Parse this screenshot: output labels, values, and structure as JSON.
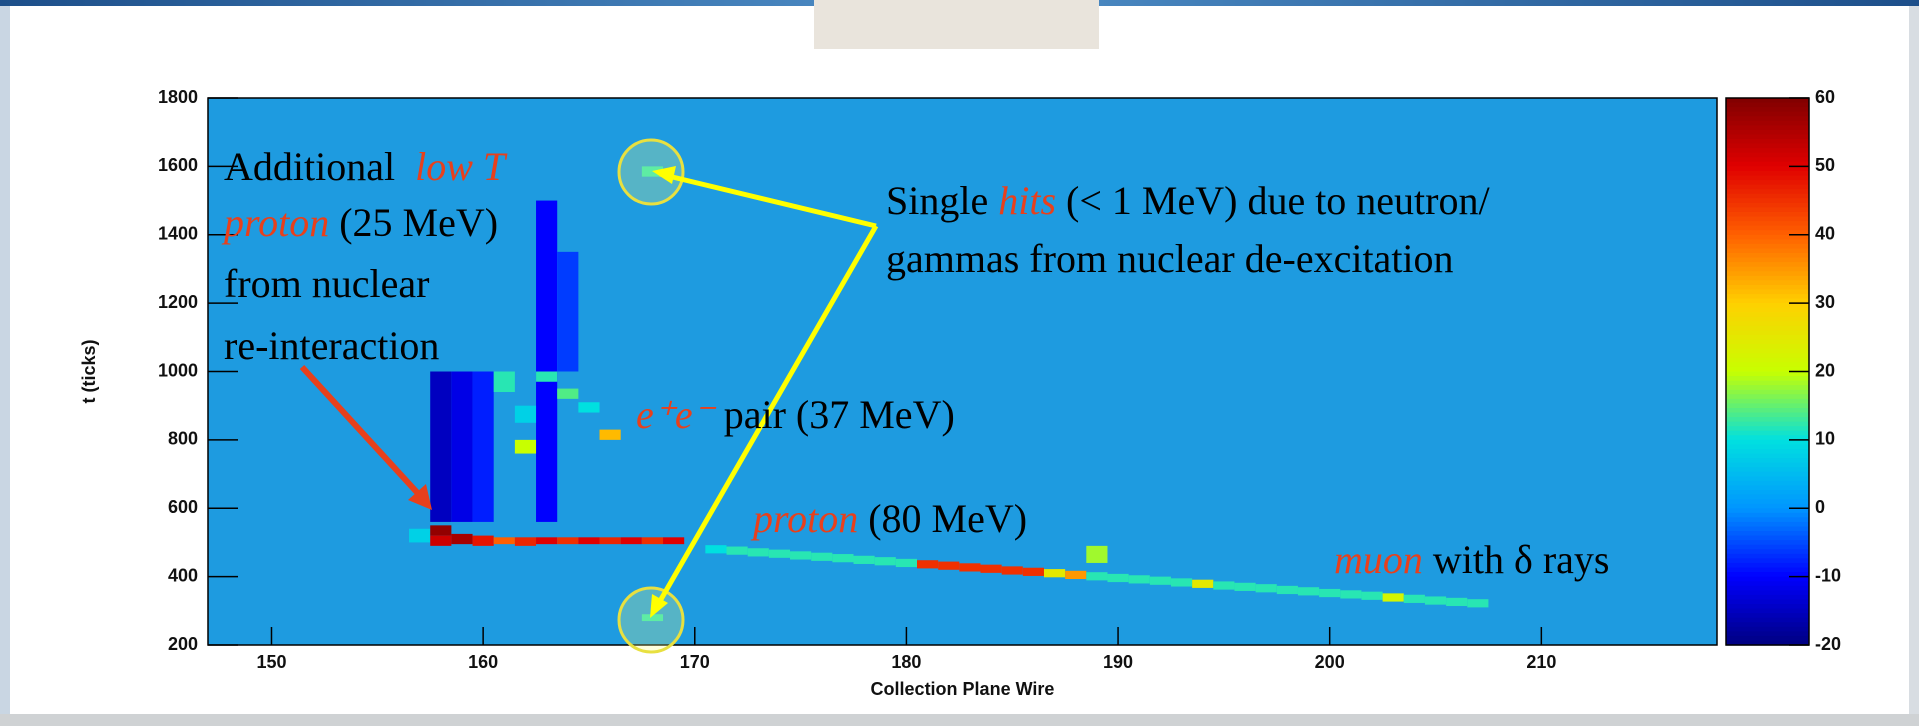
{
  "chart_data": {
    "type": "heatmap",
    "x_label": "Collection Plane Wire",
    "y_label": "t (ticks)",
    "xlim": [
      147,
      218.3
    ],
    "xticks": [
      150,
      160,
      170,
      180,
      190,
      200,
      210
    ],
    "ylim": [
      200,
      1800
    ],
    "yticks": [
      200,
      400,
      600,
      800,
      1000,
      1200,
      1400,
      1600,
      1800
    ],
    "zlim": [
      -20,
      60
    ],
    "zticks": [
      -20,
      -10,
      0,
      10,
      20,
      30,
      40,
      50,
      60
    ],
    "background": "#1e9be0",
    "colormap": [
      "#000080",
      "#0000ff",
      "#0096ff",
      "#00e0e0",
      "#c8ff00",
      "#ffd000",
      "#ff6000",
      "#e00000",
      "#800000"
    ],
    "cells": {
      "wire": [
        158,
        159,
        160,
        163,
        164,
        157,
        158,
        158,
        159,
        160,
        161,
        162,
        163,
        164,
        165,
        166,
        167,
        168,
        169,
        161,
        162,
        162,
        163,
        164,
        165,
        166,
        168,
        168,
        189,
        171,
        172,
        173,
        174,
        175,
        176,
        177,
        178,
        179,
        180,
        181,
        182,
        183,
        184,
        185,
        186,
        187,
        188,
        189,
        190,
        191,
        192,
        193,
        194,
        195,
        196,
        197,
        198,
        199,
        200,
        201,
        202,
        203,
        204,
        205,
        206,
        207
      ],
      "t_low": [
        560,
        560,
        560,
        560,
        1000,
        500,
        520,
        490,
        495,
        490,
        495,
        490,
        495,
        495,
        495,
        495,
        495,
        495,
        495,
        940,
        760,
        850,
        970,
        920,
        880,
        800,
        1570,
        270,
        440,
        468,
        464,
        459,
        455,
        450,
        446,
        442,
        437,
        433,
        428,
        424,
        420,
        415,
        411,
        406,
        402,
        398,
        393,
        389,
        384,
        380,
        376,
        371,
        367,
        362,
        358,
        354,
        349,
        345,
        340,
        336,
        332,
        327,
        323,
        318,
        314,
        310
      ],
      "t_high": [
        1000,
        1000,
        1000,
        1500,
        1350,
        540,
        550,
        520,
        525,
        520,
        515,
        515,
        515,
        515,
        515,
        515,
        515,
        515,
        515,
        1000,
        800,
        900,
        1000,
        950,
        910,
        830,
        1600,
        290,
        490,
        492,
        488,
        483,
        479,
        474,
        470,
        466,
        461,
        457,
        452,
        448,
        444,
        439,
        435,
        430,
        426,
        422,
        417,
        413,
        408,
        404,
        400,
        395,
        391,
        386,
        382,
        378,
        373,
        369,
        364,
        360,
        356,
        351,
        347,
        342,
        338,
        334
      ],
      "z": [
        -15,
        -12,
        -8,
        -10,
        -6,
        8,
        58,
        52,
        56,
        48,
        40,
        46,
        50,
        45,
        50,
        46,
        50,
        45,
        50,
        12,
        20,
        8,
        12,
        14,
        10,
        32,
        12,
        12,
        18,
        10,
        12,
        12,
        12,
        12,
        12,
        12,
        12,
        12,
        12,
        45,
        45,
        45,
        45,
        45,
        45,
        25,
        35,
        12,
        12,
        12,
        12,
        12,
        25,
        12,
        12,
        12,
        12,
        12,
        12,
        12,
        12,
        22,
        12,
        12,
        12,
        12
      ]
    },
    "emphasis_color": "#e8401c",
    "annotations": [
      {
        "lines": [
          [
            {
              "text": "Additional  "
            },
            {
              "text": "low T",
              "em": true
            }
          ],
          [
            {
              "text": "proton",
              "em": true
            },
            {
              "text": " (25 MeV)"
            }
          ],
          [
            {
              "text": "from nuclear"
            }
          ],
          [
            {
              "text": "re-interaction"
            }
          ]
        ]
      },
      {
        "lines": [
          [
            {
              "text": "Single "
            },
            {
              "text": "hits",
              "em": true
            },
            {
              "text": " (< 1 MeV) due to neutron/"
            }
          ],
          [
            {
              "text": "gammas from nuclear de-excitation"
            }
          ]
        ]
      },
      {
        "lines": [
          [
            {
              "text": "e⁺e⁻",
              "em": true
            },
            {
              "text": " pair (37 MeV)"
            }
          ]
        ]
      },
      {
        "lines": [
          [
            {
              "text": "proton",
              "em": true
            },
            {
              "text": " (80 MeV)"
            }
          ]
        ]
      },
      {
        "lines": [
          [
            {
              "text": "muon",
              "em": true
            },
            {
              "text": " with δ rays"
            }
          ]
        ]
      }
    ]
  }
}
